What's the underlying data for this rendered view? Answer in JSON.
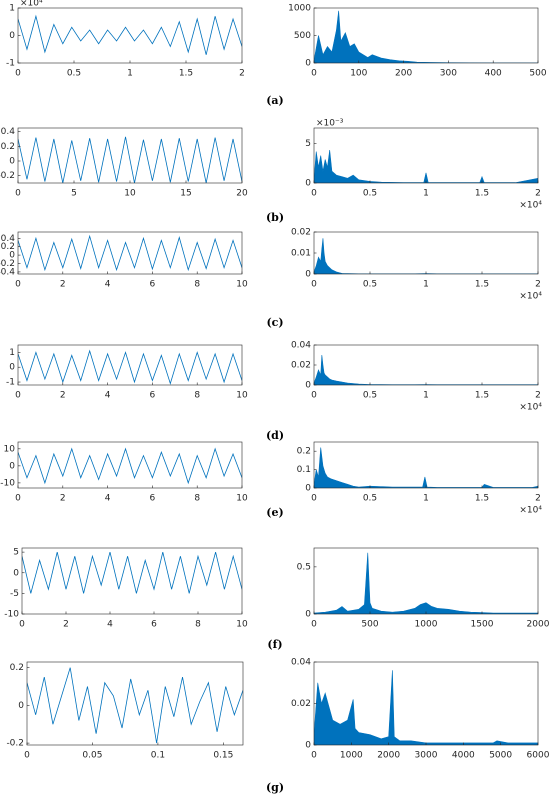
{
  "panel_labels": [
    "(a)",
    "(b)",
    "(c)",
    "(d)",
    "(e)",
    "(f)",
    "(g)"
  ],
  "chart_data": [
    {
      "type": "line",
      "color": "#0072bd",
      "xlim": [
        0,
        2
      ],
      "xticks": [
        0,
        0.5,
        1,
        1.5,
        2
      ],
      "ylim": [
        -1,
        1
      ],
      "yticks": [
        -1,
        0,
        1
      ],
      "y_exponent": "×10⁴",
      "x": [
        0,
        0.08,
        0.16,
        0.24,
        0.32,
        0.4,
        0.48,
        0.56,
        0.64,
        0.72,
        0.8,
        0.88,
        0.96,
        1.04,
        1.12,
        1.2,
        1.28,
        1.36,
        1.44,
        1.52,
        1.6,
        1.68,
        1.76,
        1.84,
        1.92,
        2
      ],
      "values": [
        0.6,
        -0.5,
        0.7,
        -0.6,
        0.4,
        -0.3,
        0.3,
        -0.2,
        0.2,
        -0.3,
        0.2,
        -0.2,
        0.3,
        -0.2,
        0.2,
        -0.3,
        0.3,
        -0.4,
        0.5,
        -0.6,
        0.6,
        -0.7,
        0.7,
        -0.5,
        0.6,
        -0.4
      ]
    },
    {
      "type": "area",
      "color": "#0072bd",
      "xlim": [
        0,
        500
      ],
      "xticks": [
        0,
        100,
        200,
        300,
        400,
        500
      ],
      "ylim": [
        0,
        1000
      ],
      "yticks": [
        0,
        500,
        1000
      ],
      "x": [
        0,
        10,
        20,
        30,
        40,
        50,
        55,
        60,
        70,
        80,
        90,
        100,
        110,
        120,
        130,
        150,
        170,
        190,
        210,
        230,
        260,
        300,
        350,
        400,
        450,
        500
      ],
      "values": [
        50,
        500,
        150,
        300,
        200,
        600,
        950,
        400,
        550,
        300,
        350,
        200,
        150,
        100,
        150,
        90,
        60,
        40,
        30,
        15,
        10,
        5,
        3,
        2,
        2,
        1
      ]
    },
    {
      "type": "line",
      "color": "#0072bd",
      "xlim": [
        0,
        20
      ],
      "xticks": [
        0,
        5,
        10,
        15,
        20
      ],
      "ylim": [
        -0.3,
        0.45
      ],
      "yticks": [
        -0.2,
        0,
        0.2,
        0.4
      ],
      "x": [
        0,
        0.8,
        1.6,
        2.4,
        3.2,
        4,
        4.8,
        5.6,
        6.4,
        7.2,
        8,
        8.8,
        9.6,
        10.4,
        11.2,
        12,
        12.8,
        13.6,
        14.4,
        15.2,
        16,
        16.8,
        17.6,
        18.4,
        19.2,
        20
      ],
      "values": [
        0.3,
        -0.25,
        0.32,
        -0.28,
        0.3,
        -0.3,
        0.28,
        -0.27,
        0.31,
        -0.29,
        0.3,
        -0.28,
        0.33,
        -0.3,
        0.29,
        -0.27,
        0.3,
        -0.29,
        0.31,
        -0.28,
        0.3,
        -0.3,
        0.32,
        -0.27,
        0.3,
        -0.28
      ]
    },
    {
      "type": "area",
      "color": "#0072bd",
      "xlim": [
        0,
        2
      ],
      "xticks": [
        0,
        0.5,
        1,
        1.5,
        2
      ],
      "ylim": [
        0,
        7
      ],
      "yticks": [
        0,
        5
      ],
      "y_exponent": "×10⁻³",
      "x_exponent": "×10⁴",
      "x": [
        0,
        0.02,
        0.04,
        0.06,
        0.08,
        0.1,
        0.12,
        0.14,
        0.16,
        0.2,
        0.25,
        0.3,
        0.35,
        0.4,
        0.5,
        0.6,
        0.8,
        0.98,
        1,
        1.02,
        1.2,
        1.48,
        1.5,
        1.52,
        1.8,
        2
      ],
      "values": [
        0.5,
        4,
        2,
        3.5,
        1.5,
        3,
        2,
        4.2,
        1.5,
        1,
        0.8,
        0.6,
        1,
        0.4,
        0.2,
        0.1,
        0.05,
        0.05,
        1.3,
        0.05,
        0.05,
        0.05,
        0.8,
        0.05,
        0.05,
        0.6
      ]
    },
    {
      "type": "line",
      "color": "#0072bd",
      "xlim": [
        0,
        10
      ],
      "xticks": [
        0,
        2,
        4,
        6,
        8,
        10
      ],
      "ylim": [
        -0.45,
        0.55
      ],
      "yticks": [
        -0.4,
        -0.2,
        0,
        0.2,
        0.4
      ],
      "x": [
        0,
        0.4,
        0.8,
        1.2,
        1.6,
        2,
        2.4,
        2.8,
        3.2,
        3.6,
        4,
        4.4,
        4.8,
        5.2,
        5.6,
        6,
        6.4,
        6.8,
        7.2,
        7.6,
        8,
        8.4,
        8.8,
        9.2,
        9.6,
        10
      ],
      "values": [
        0.35,
        -0.3,
        0.4,
        -0.35,
        0.3,
        -0.3,
        0.38,
        -0.32,
        0.45,
        -0.3,
        0.35,
        -0.35,
        0.3,
        -0.3,
        0.4,
        -0.33,
        0.35,
        -0.3,
        0.42,
        -0.35,
        0.3,
        -0.32,
        0.38,
        -0.3,
        0.35,
        -0.3
      ]
    },
    {
      "type": "area",
      "color": "#0072bd",
      "xlim": [
        0,
        2
      ],
      "xticks": [
        0,
        0.5,
        1,
        1.5,
        2
      ],
      "ylim": [
        0,
        0.02
      ],
      "yticks": [
        0,
        0.01,
        0.02
      ],
      "x_exponent": "×10⁴",
      "x": [
        0,
        0.02,
        0.04,
        0.06,
        0.07,
        0.08,
        0.09,
        0.1,
        0.12,
        0.14,
        0.16,
        0.2,
        0.25,
        0.3,
        0.4,
        0.5,
        0.7,
        0.9,
        1,
        1.1,
        1.3,
        1.5,
        1.6,
        1.8,
        1.9,
        2
      ],
      "values": [
        0.001,
        0.004,
        0.008,
        0.006,
        0.012,
        0.017,
        0.01,
        0.006,
        0.004,
        0.003,
        0.002,
        0.001,
        0.0003,
        0.0002,
        0.0001,
        0.0001,
        0.0001,
        0.0001,
        0.0002,
        0.0001,
        0.0001,
        0.0001,
        0.0001,
        0.0001,
        0.0001,
        0.0001
      ]
    },
    {
      "type": "line",
      "color": "#0072bd",
      "xlim": [
        0,
        10
      ],
      "xticks": [
        0,
        2,
        4,
        6,
        8,
        10
      ],
      "ylim": [
        -1.2,
        1.5
      ],
      "yticks": [
        -1,
        0,
        1
      ],
      "x": [
        0,
        0.4,
        0.8,
        1.2,
        1.6,
        2,
        2.4,
        2.8,
        3.2,
        3.6,
        4,
        4.4,
        4.8,
        5.2,
        5.6,
        6,
        6.4,
        6.8,
        7.2,
        7.6,
        8,
        8.4,
        8.8,
        9.2,
        9.6,
        10
      ],
      "values": [
        0.9,
        -0.9,
        1.0,
        -0.8,
        0.9,
        -1.0,
        0.8,
        -0.9,
        1.1,
        -0.9,
        0.9,
        -0.8,
        1.0,
        -1.0,
        0.9,
        -0.9,
        0.8,
        -1.1,
        0.9,
        -0.9,
        1.0,
        -0.8,
        0.9,
        -1.0,
        0.9,
        -0.9
      ]
    },
    {
      "type": "area",
      "color": "#0072bd",
      "xlim": [
        0,
        2
      ],
      "xticks": [
        0,
        0.5,
        1,
        1.5,
        2
      ],
      "ylim": [
        0,
        0.04
      ],
      "yticks": [
        0,
        0.02,
        0.04
      ],
      "x_exponent": "×10⁴",
      "x": [
        0,
        0.02,
        0.04,
        0.06,
        0.07,
        0.08,
        0.09,
        0.1,
        0.12,
        0.14,
        0.16,
        0.2,
        0.25,
        0.3,
        0.4,
        0.5,
        0.7,
        0.9,
        1,
        1.1,
        1.3,
        1.5,
        1.6,
        1.8,
        1.9,
        2
      ],
      "values": [
        0.002,
        0.008,
        0.015,
        0.01,
        0.03,
        0.02,
        0.012,
        0.01,
        0.008,
        0.006,
        0.005,
        0.004,
        0.003,
        0.002,
        0.001,
        0.0005,
        0.0003,
        0.0003,
        0.0005,
        0.0003,
        0.0003,
        0.0003,
        0.0003,
        0.0003,
        0.0003,
        0.0003
      ]
    },
    {
      "type": "line",
      "color": "#0072bd",
      "xlim": [
        0,
        10
      ],
      "xticks": [
        0,
        2,
        4,
        6,
        8,
        10
      ],
      "ylim": [
        -13,
        14
      ],
      "yticks": [
        -10,
        0,
        10
      ],
      "x": [
        0,
        0.4,
        0.8,
        1.2,
        1.6,
        2,
        2.4,
        2.8,
        3.2,
        3.6,
        4,
        4.4,
        4.8,
        5.2,
        5.6,
        6,
        6.4,
        6.8,
        7.2,
        7.6,
        8,
        8.4,
        8.8,
        9.2,
        9.6,
        10
      ],
      "values": [
        8,
        -7,
        6,
        -10,
        7,
        -6,
        10,
        -7,
        6,
        -8,
        7,
        -6,
        10,
        -7,
        6,
        -7,
        8,
        -6,
        7,
        -10,
        6,
        -7,
        10,
        -6,
        7,
        -7
      ]
    },
    {
      "type": "area",
      "color": "#0072bd",
      "xlim": [
        0,
        2
      ],
      "xticks": [
        0,
        0.5,
        1,
        1.5,
        2
      ],
      "ylim": [
        0,
        0.25
      ],
      "yticks": [
        0,
        0.1,
        0.2
      ],
      "x_exponent": "×10⁴",
      "x": [
        0,
        0.02,
        0.04,
        0.06,
        0.08,
        0.1,
        0.12,
        0.15,
        0.2,
        0.25,
        0.3,
        0.35,
        0.4,
        0.5,
        0.7,
        0.97,
        0.99,
        1.01,
        1.1,
        1.3,
        1.5,
        1.52,
        1.6,
        1.8,
        1.95,
        2
      ],
      "values": [
        0.02,
        0.1,
        0.06,
        0.22,
        0.12,
        0.08,
        0.06,
        0.05,
        0.04,
        0.03,
        0.02,
        0.01,
        0.005,
        0.01,
        0.005,
        0.005,
        0.06,
        0.005,
        0.003,
        0.003,
        0.003,
        0.02,
        0.003,
        0.003,
        0.003,
        0.01
      ]
    },
    {
      "type": "line",
      "color": "#0072bd",
      "xlim": [
        0,
        10
      ],
      "xticks": [
        0,
        2,
        4,
        6,
        8,
        10
      ],
      "ylim": [
        -10,
        6
      ],
      "yticks": [
        -10,
        -5,
        0,
        5
      ],
      "x": [
        0,
        0.4,
        0.8,
        1.2,
        1.6,
        2,
        2.4,
        2.8,
        3.2,
        3.6,
        4,
        4.4,
        4.8,
        5.2,
        5.6,
        6,
        6.4,
        6.8,
        7.2,
        7.6,
        8,
        8.4,
        8.8,
        9.2,
        9.6,
        10
      ],
      "values": [
        4,
        -5,
        3,
        -4,
        5,
        -4,
        4,
        -5,
        4,
        -3,
        5,
        -4,
        4,
        -5,
        3,
        -4,
        5,
        -4,
        4,
        -5,
        4,
        -3,
        5,
        -4,
        4,
        -4
      ]
    },
    {
      "type": "area",
      "color": "#0072bd",
      "xlim": [
        0,
        2000
      ],
      "xticks": [
        0,
        500,
        1000,
        1500,
        2000
      ],
      "ylim": [
        0,
        0.7
      ],
      "yticks": [
        0,
        0.5
      ],
      "x": [
        0,
        100,
        200,
        250,
        300,
        400,
        450,
        480,
        500,
        520,
        600,
        700,
        800,
        900,
        950,
        1000,
        1050,
        1100,
        1200,
        1300,
        1400,
        1500,
        1600,
        1700,
        1800,
        2000
      ],
      "values": [
        0.01,
        0.02,
        0.04,
        0.08,
        0.03,
        0.05,
        0.1,
        0.65,
        0.12,
        0.06,
        0.03,
        0.02,
        0.03,
        0.06,
        0.1,
        0.12,
        0.08,
        0.06,
        0.05,
        0.03,
        0.02,
        0.015,
        0.01,
        0.01,
        0.01,
        0.01
      ]
    },
    {
      "type": "line",
      "color": "#0072bd",
      "xlim": [
        0,
        0.165
      ],
      "xticks": [
        0,
        0.05,
        0.1,
        0.15
      ],
      "ylim": [
        -0.21,
        0.23
      ],
      "yticks": [
        -0.2,
        0,
        0.2
      ],
      "x": [
        0,
        0.0066,
        0.0132,
        0.0198,
        0.0264,
        0.033,
        0.0396,
        0.0462,
        0.0528,
        0.0594,
        0.066,
        0.0726,
        0.0792,
        0.0858,
        0.0924,
        0.099,
        0.1056,
        0.1122,
        0.1188,
        0.1254,
        0.132,
        0.1386,
        0.1452,
        0.1518,
        0.1584,
        0.165
      ],
      "values": [
        0.12,
        -0.05,
        0.15,
        -0.1,
        0.05,
        0.2,
        -0.08,
        0.1,
        -0.15,
        0.12,
        0.05,
        -0.12,
        0.14,
        -0.05,
        0.08,
        -0.2,
        0.1,
        -0.06,
        0.15,
        -0.1,
        0.02,
        0.12,
        -0.14,
        0.1,
        -0.05,
        0.08
      ]
    },
    {
      "type": "area",
      "color": "#0072bd",
      "xlim": [
        0,
        6000
      ],
      "xticks": [
        0,
        1000,
        2000,
        3000,
        4000,
        5000,
        6000
      ],
      "ylim": [
        0,
        0.04
      ],
      "yticks": [
        0,
        0.02,
        0.04
      ],
      "x": [
        0,
        100,
        200,
        300,
        500,
        700,
        900,
        1050,
        1100,
        1200,
        1500,
        1800,
        2000,
        2100,
        2150,
        2300,
        2600,
        3000,
        3500,
        4000,
        4500,
        4800,
        4900,
        5200,
        5600,
        6000
      ],
      "values": [
        0.005,
        0.03,
        0.02,
        0.025,
        0.012,
        0.01,
        0.012,
        0.022,
        0.008,
        0.006,
        0.005,
        0.003,
        0.004,
        0.036,
        0.004,
        0.002,
        0.002,
        0.001,
        0.001,
        0.001,
        0.001,
        0.001,
        0.002,
        0.001,
        0.001,
        0.001
      ]
    }
  ]
}
